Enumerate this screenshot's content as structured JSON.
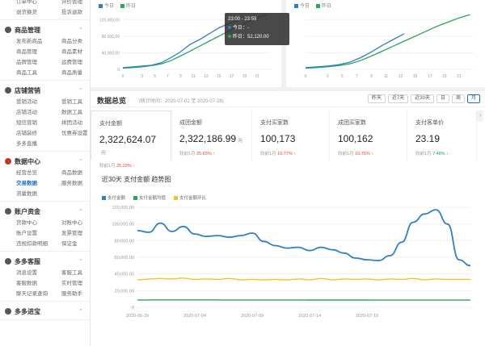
{
  "sidebar": {
    "top_rows": [
      [
        "订单中心",
        "评价管理"
      ],
      [
        "退货换货",
        "投诉退款"
      ]
    ],
    "sections": [
      {
        "title": "商品管理",
        "items": [
          "发布新商品",
          "商品分类",
          "商品管理",
          "商品素材",
          "品牌管理",
          "运费管理",
          "商品工具",
          "商品质量"
        ]
      },
      {
        "title": "店铺营销",
        "items": [
          "营销活动",
          "营销工具",
          "店铺活动",
          "数据工具",
          "短信营销",
          "拼团活动",
          "店铺装修",
          "优惠券设置",
          "多多直播",
          ""
        ]
      },
      {
        "title": "数据中心",
        "items": [
          "经营总览",
          "商品数据",
          "交易数据",
          "服务数据",
          "流量数据",
          ""
        ]
      },
      {
        "title": "账户资金",
        "items": [
          "货款中心",
          "对账中心",
          "账户设置",
          "发票管理",
          "违规扣款明细",
          "保证金"
        ]
      },
      {
        "title": "多多客服",
        "items": [
          "消息设置",
          "客服工具",
          "客服数据",
          "实时管理",
          "聊天记录查询",
          "服务助手"
        ]
      },
      {
        "title": "多多进宝",
        "items": []
      }
    ],
    "active_item": "交易数据"
  },
  "top_charts": {
    "legend_today": "今日",
    "legend_yesterday": "昨日",
    "left_yticks": [
      "120,000.00",
      "80,000.00",
      "40,000.00",
      "0"
    ],
    "left_xticks": [
      "0",
      "3",
      "5",
      "7",
      "9",
      "11",
      "13",
      "15",
      "17",
      "19",
      "21"
    ],
    "right_xticks": [
      "0",
      "3",
      "5",
      "7",
      "9",
      "11",
      "13",
      "15",
      "17",
      "19",
      "21"
    ],
    "tooltip": {
      "time": "23:00 - 23:59",
      "today": "今日：-",
      "yesterday": "昨日：52,120.00"
    },
    "colors": {
      "today": "#2f7fc6",
      "yesterday": "#2aa55a"
    }
  },
  "overview": {
    "title": "数据总览",
    "subtitle": "(统计时间：2020-07-01 至 2020-07-28)",
    "buttons": [
      "昨天",
      "近7天",
      "近30天",
      "日",
      "周",
      "月"
    ],
    "active_button": "月",
    "metrics": [
      {
        "label": "支付金额",
        "value": "2,322,624.07",
        "unit": "元",
        "cmp_label": "较前1月",
        "cmp_value": "25.29%",
        "dir": "up"
      },
      {
        "label": "成团金额",
        "value": "2,322,186.99",
        "unit": "元",
        "cmp_label": "较前1月",
        "cmp_value": "25.03%",
        "dir": "up"
      },
      {
        "label": "支付买家数",
        "value": "100,173",
        "unit": "",
        "cmp_label": "较前1月",
        "cmp_value": "16.77%",
        "dir": "up"
      },
      {
        "label": "成团买家数",
        "value": "100,162",
        "unit": "",
        "cmp_label": "较前1月",
        "cmp_value": "16.76%",
        "dir": "up"
      },
      {
        "label": "支付客单价",
        "value": "23.19",
        "unit": "",
        "cmp_label": "较前1月",
        "cmp_value": "7.48%",
        "dir": "down"
      }
    ],
    "trend_title": "近30天 支付金额 趋势图",
    "colors": {
      "accent": "#1a6fd1",
      "up": "#e2483d",
      "down": "#22a05b"
    }
  },
  "chart_data": {
    "type": "line",
    "title": "近30天 支付金额 趋势图",
    "x": [
      "2020-06-29",
      "2020-06-30",
      "2020-07-01",
      "2020-07-02",
      "2020-07-03",
      "2020-07-04",
      "2020-07-05",
      "2020-07-06",
      "2020-07-07",
      "2020-07-08",
      "2020-07-09",
      "2020-07-10",
      "2020-07-11",
      "2020-07-12",
      "2020-07-13",
      "2020-07-14",
      "2020-07-15",
      "2020-07-16",
      "2020-07-17",
      "2020-07-18",
      "2020-07-19",
      "2020-07-20",
      "2020-07-21",
      "2020-07-22",
      "2020-07-23",
      "2020-07-24",
      "2020-07-25",
      "2020-07-26",
      "2020-07-27",
      "2020-07-28"
    ],
    "xticks": [
      "2020-06-29",
      "2020-07-04",
      "2020-07-09",
      "2020-07-14",
      "2020-07-19"
    ],
    "yticks": [
      "120,000.00",
      "100,000.00",
      "80,000.00",
      "60,000.00",
      "40,000.00",
      "20,000.00",
      "0"
    ],
    "ylim": [
      0,
      120000
    ],
    "series": [
      {
        "name": "支付金额",
        "color": "#2f7fc6",
        "values": [
          92000,
          90000,
          101000,
          91000,
          97000,
          88000,
          85000,
          86000,
          84000,
          86000,
          89000,
          79000,
          74000,
          71000,
          72000,
          68000,
          72000,
          69000,
          65000,
          59000,
          57000,
          56000,
          62000,
          78000,
          102000,
          112000,
          117000,
          100000,
          57000,
          50000
        ]
      },
      {
        "name": "支付金额均值",
        "color": "#2aa55a",
        "values": [
          8800,
          8800,
          8900,
          8900,
          8900,
          8900,
          8900,
          8800,
          8800,
          8800,
          8800,
          8800,
          8800,
          8800,
          8800,
          8700,
          8700,
          8700,
          8700,
          8700,
          8700,
          8600,
          8600,
          8600,
          8600,
          8600,
          8600,
          8600,
          8600,
          8600
        ]
      },
      {
        "name": "支付金额环比",
        "color": "#f2c12e",
        "values": [
          33000,
          34000,
          34500,
          34000,
          35000,
          33500,
          34000,
          33500,
          34500,
          33000,
          33500,
          33000,
          33500,
          33000,
          34000,
          33000,
          34500,
          33000,
          34000,
          33500,
          34000,
          33000,
          34000,
          33500,
          34500,
          33000,
          34000,
          33500,
          33500,
          33500
        ]
      }
    ],
    "legend": "top-left",
    "grid": true
  },
  "top_chart_data": {
    "type": "line",
    "panels": [
      {
        "ylim": [
          0,
          140000
        ],
        "today": [
          4000,
          6000,
          8000,
          10000,
          16000,
          28000,
          42000,
          60000,
          72000,
          86000,
          100000,
          110000,
          118000
        ],
        "yesterday": [
          3000,
          4000,
          6000,
          9000,
          13000,
          21000,
          32000,
          44000,
          56000,
          68000,
          80000,
          92000,
          104000,
          114000,
          124000,
          132000
        ]
      },
      {
        "ylim": [
          0,
          140000
        ],
        "today": [
          4000,
          6000,
          8000,
          11000,
          17000,
          28000,
          42000,
          58000,
          72000,
          86000
        ],
        "yesterday": [
          3000,
          4000,
          6000,
          9000,
          13000,
          21000,
          32000,
          44000,
          56000,
          68000,
          80000,
          92000,
          104000,
          114000,
          124000,
          132000
        ]
      }
    ]
  }
}
